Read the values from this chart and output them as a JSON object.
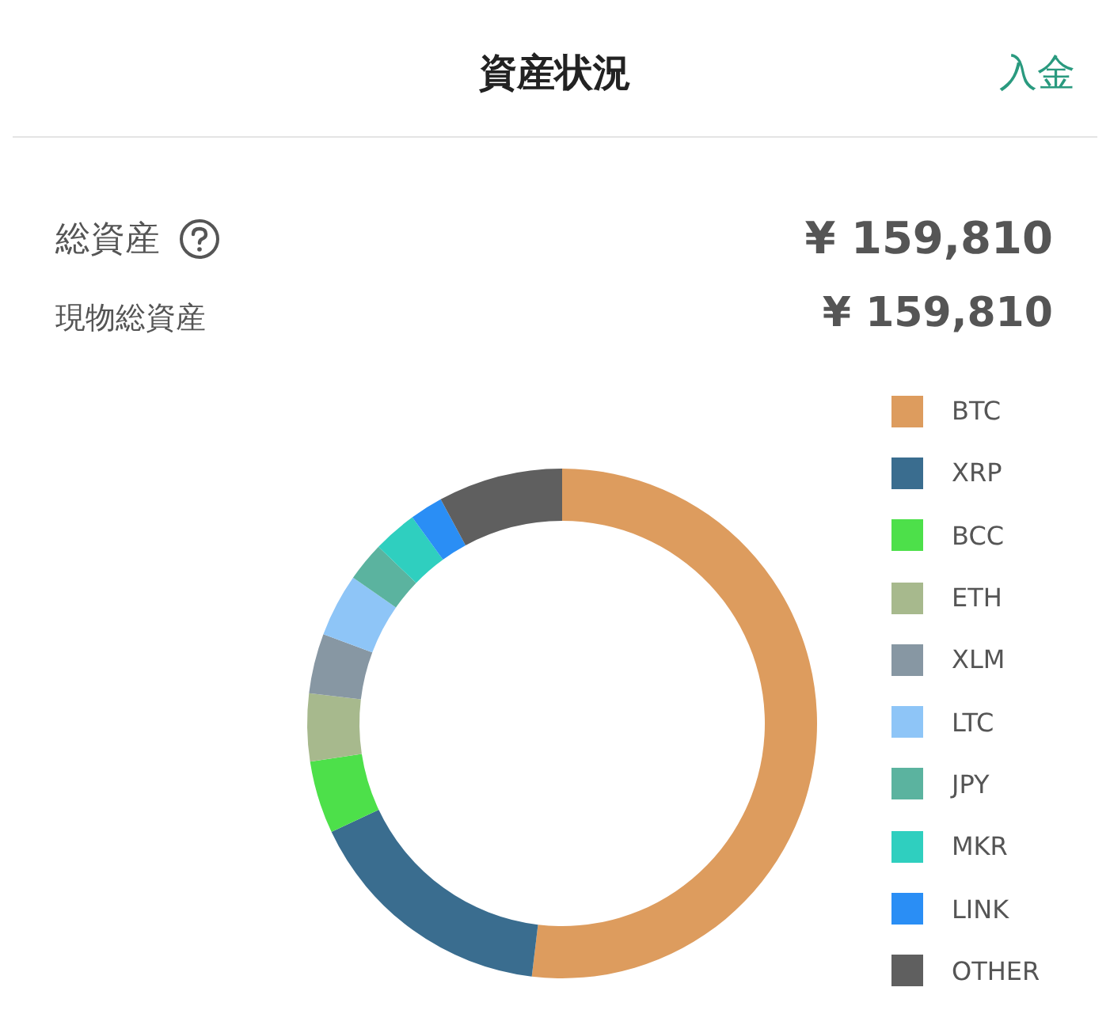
{
  "chart_data": {
    "type": "donut",
    "title": "資産状況",
    "annotations": [
      "入金",
      "総資産",
      "¥ 159,810",
      "現物総資産",
      "¥ 159,810"
    ],
    "categories": [
      "BTC",
      "XRP",
      "BCC",
      "ETH",
      "XLM",
      "LTC",
      "JPY",
      "MKR",
      "LINK",
      "OTHER"
    ],
    "values": [
      51.9,
      16.1,
      4.6,
      4.3,
      3.8,
      4.0,
      2.5,
      2.8,
      2.1,
      7.9
    ],
    "colors": [
      "#dd9c5e",
      "#3a6d8f",
      "#4de04a",
      "#a7b98d",
      "#8797a3",
      "#8ec5f7",
      "#5bb39f",
      "#2fcfbf",
      "#2a8ef5",
      "#5f5f5f"
    ],
    "legend": "right"
  }
}
